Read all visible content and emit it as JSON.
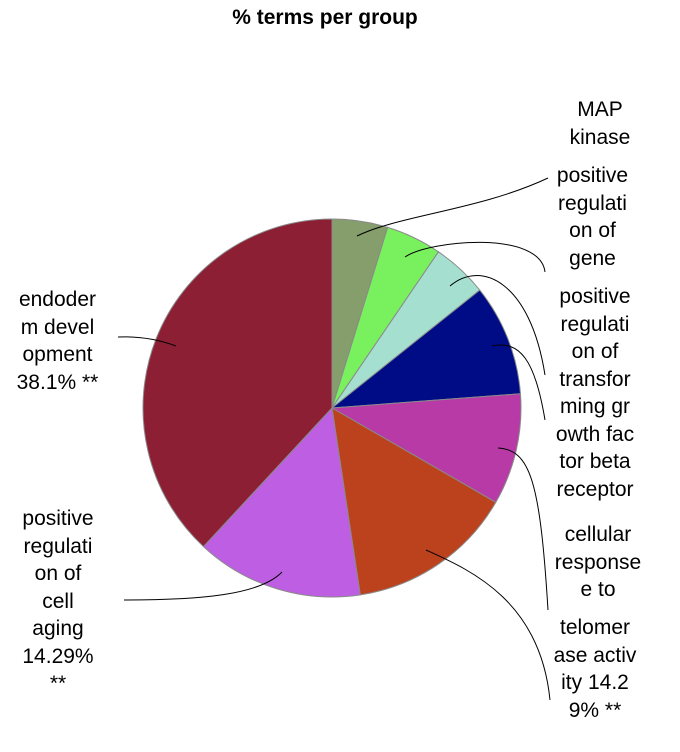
{
  "chart_data": {
    "type": "pie",
    "title": "% terms per group",
    "colors": {
      "slices": [
        "#869D6C",
        "#79F05D",
        "#A4DFCF",
        "#000C86",
        "#B73AA6",
        "#BC421D",
        "#BE5EE3",
        "#8C1F34"
      ]
    },
    "slices": [
      {
        "label": "",
        "value": 4.76
      },
      {
        "label": "",
        "value": 4.76
      },
      {
        "label": "",
        "value": 4.76
      },
      {
        "label": "",
        "value": 9.52
      },
      {
        "label": "",
        "value": 9.52
      },
      {
        "label": "telomer\nase activ\nity 14.2\n9% **",
        "value": 14.29
      },
      {
        "label": "positive\nregulati\non of\ncell\naging\n14.29%\n**",
        "value": 14.29
      },
      {
        "label": "endoder\nm devel\nopment\n38.1% **",
        "value": 38.1
      }
    ],
    "extra_labels": [
      "MAP\nkinase",
      "positive\nregulati\non of\ngene",
      "positive\nregulati\non of\ntransfor\nming gr\nowth fac\ntor beta\nreceptor",
      "cellular\nresponse\ne to"
    ]
  }
}
